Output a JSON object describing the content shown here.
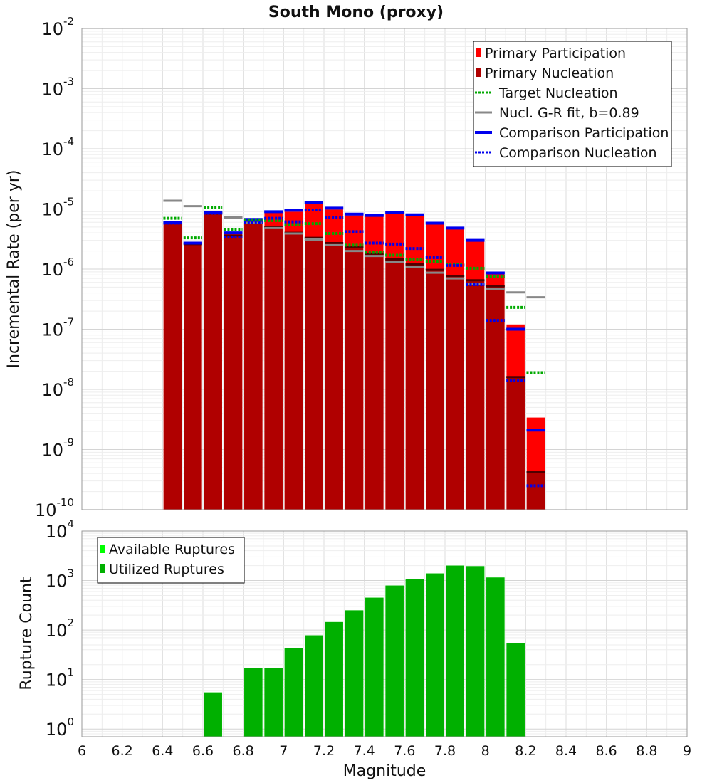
{
  "chart_data": [
    {
      "type": "bar",
      "title": "South Mono (proxy)",
      "ylabel": "Incremental Rate (per yr)",
      "xlabel": "",
      "yscale": "log",
      "ylim": [
        1e-10,
        0.01
      ],
      "xlim": [
        6,
        9
      ],
      "grid": true,
      "legend_position": "top-right",
      "ytick_labels": [
        {
          "base": "10",
          "exp": "-10"
        },
        {
          "base": "10",
          "exp": "-9"
        },
        {
          "base": "10",
          "exp": "-8"
        },
        {
          "base": "10",
          "exp": "-7"
        },
        {
          "base": "10",
          "exp": "-6"
        },
        {
          "base": "10",
          "exp": "-5"
        },
        {
          "base": "10",
          "exp": "-4"
        },
        {
          "base": "10",
          "exp": "-3"
        },
        {
          "base": "10",
          "exp": "-2"
        }
      ],
      "x": [
        6.45,
        6.55,
        6.65,
        6.75,
        6.85,
        6.95,
        7.05,
        7.15,
        7.25,
        7.35,
        7.45,
        7.55,
        7.65,
        7.75,
        7.85,
        7.95,
        8.05,
        8.15,
        8.25
      ],
      "series": [
        {
          "name": "Primary Participation",
          "style": "bar",
          "color": "#ff0000",
          "values": [
            5.8e-06,
            2.6e-06,
            8.5e-06,
            3.8e-06,
            6.3e-06,
            8.7e-06,
            9e-06,
            1.22e-05,
            9.8e-06,
            7.8e-06,
            7.5e-06,
            8.2e-06,
            7.7e-06,
            5.6e-06,
            4.6e-06,
            2.9e-06,
            8.3e-07,
            1.2e-07,
            3.4e-09
          ]
        },
        {
          "name": "Primary Nucleation",
          "style": "bar",
          "color": "#b00000",
          "values": [
            5.8e-06,
            2.6e-06,
            8.4e-06,
            3.6e-06,
            6e-06,
            5e-06,
            4e-06,
            3.3e-06,
            2.7e-06,
            2.3e-06,
            1.8e-06,
            1.45e-06,
            1.2e-06,
            9.7e-07,
            7.7e-07,
            6.5e-07,
            5.2e-07,
            1.6e-08,
            4.2e-10
          ]
        },
        {
          "name": "Target Nucleation",
          "style": "dotted",
          "color": "#00aa00",
          "values": [
            7e-06,
            3.3e-06,
            1.07e-05,
            4.6e-06,
            6.6e-06,
            6.4e-06,
            5.5e-06,
            5.7e-06,
            3.9e-06,
            2.5e-06,
            1.9e-06,
            1.7e-06,
            1.45e-06,
            1.35e-06,
            1.2e-06,
            1.03e-06,
            7.6e-07,
            2.3e-07,
            1.9e-08
          ]
        },
        {
          "name": "Nucl. G-R fit, b=0.89",
          "style": "solid",
          "color": "#888888",
          "values": [
            1.37e-05,
            1.11e-05,
            9e-06,
            7.2e-06,
            5.9e-06,
            4.8e-06,
            3.9e-06,
            3.1e-06,
            2.5e-06,
            2e-06,
            1.65e-06,
            1.33e-06,
            1.08e-06,
            8.7e-07,
            7e-07,
            5.7e-07,
            4.6e-07,
            4.1e-07,
            3.4e-07
          ]
        },
        {
          "name": "Comparison Participation",
          "style": "solid",
          "color": "#0000ee",
          "values": [
            6e-06,
            2.7e-06,
            8.8e-06,
            4e-06,
            6.7e-06,
            9e-06,
            9.5e-06,
            1.27e-05,
            1.03e-05,
            8.2e-06,
            7.8e-06,
            8.6e-06,
            8e-06,
            5.8e-06,
            4.8e-06,
            3e-06,
            8.6e-07,
            1e-07,
            2.1e-09
          ]
        },
        {
          "name": "Comparison Nucleation",
          "style": "dotted",
          "color": "#0000ee",
          "values": [
            5.8e-06,
            2.7e-06,
            8.5e-06,
            3.4e-06,
            6e-06,
            7e-06,
            6.1e-06,
            9.6e-06,
            7.2e-06,
            4.2e-06,
            2.7e-06,
            2.6e-06,
            2.2e-06,
            1.55e-06,
            1.15e-06,
            5.5e-07,
            1.4e-07,
            1.4e-08,
            2.5e-10
          ]
        }
      ]
    },
    {
      "type": "bar",
      "title": "",
      "ylabel": "Rupture Count",
      "xlabel": "Magnitude",
      "yscale": "log",
      "ylim": [
        0.7,
        10000
      ],
      "xlim": [
        6,
        9
      ],
      "grid": true,
      "legend_position": "top-left",
      "xtick_labels": [
        "6",
        "6.2",
        "6.4",
        "6.6",
        "6.8",
        "7",
        "7.2",
        "7.4",
        "7.6",
        "7.8",
        "8",
        "8.2",
        "8.4",
        "8.6",
        "8.8",
        "9"
      ],
      "ytick_labels": [
        {
          "base": "10",
          "exp": "0"
        },
        {
          "base": "10",
          "exp": "1"
        },
        {
          "base": "10",
          "exp": "2"
        },
        {
          "base": "10",
          "exp": "3"
        },
        {
          "base": "10",
          "exp": "4"
        }
      ],
      "x": [
        6.65,
        6.85,
        6.95,
        7.05,
        7.15,
        7.25,
        7.35,
        7.45,
        7.55,
        7.65,
        7.75,
        7.85,
        7.95,
        8.05,
        8.15
      ],
      "series": [
        {
          "name": "Available Ruptures",
          "style": "bar",
          "color": "#00ff00",
          "values": [
            5.5,
            17,
            17,
            43,
            78,
            145,
            250,
            450,
            790,
            1080,
            1390,
            2000,
            1950,
            1150,
            54
          ]
        },
        {
          "name": "Utilized Ruptures",
          "style": "bar",
          "color": "#00b000",
          "values": [
            5.5,
            17,
            17,
            43,
            78,
            145,
            250,
            450,
            790,
            1080,
            1390,
            2000,
            1950,
            1150,
            54
          ]
        }
      ]
    }
  ]
}
